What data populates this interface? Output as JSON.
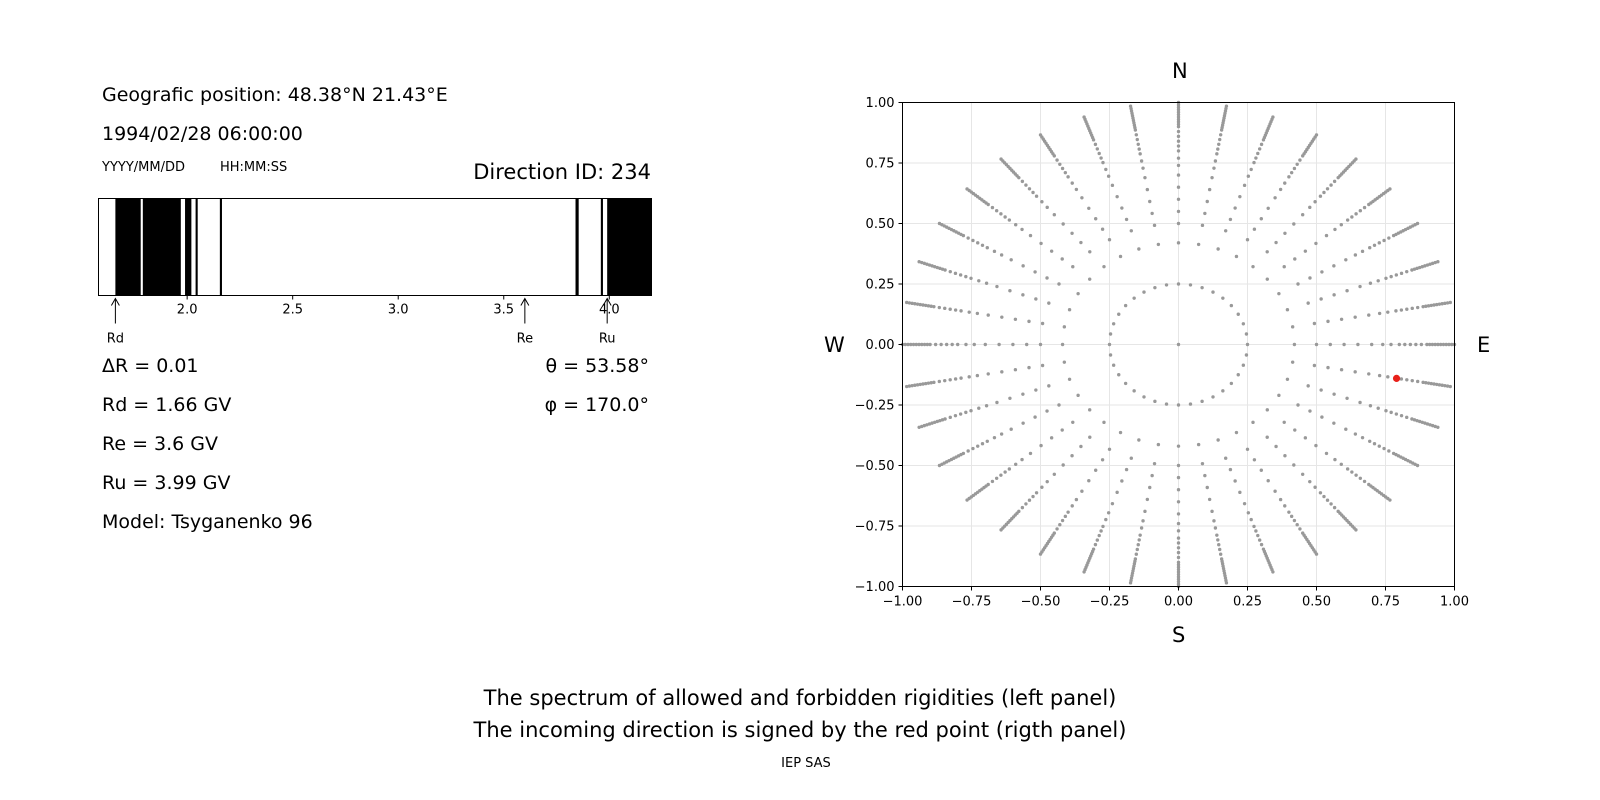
{
  "left_panel": {
    "position_text": "Geografic position: 48.38°N 21.43°E",
    "datetime_text": "1994/02/28 06:00:00",
    "date_format_label": "YYYY/MM/DD",
    "time_format_label": "HH:MM:SS",
    "direction_text": "Direction ID: 234",
    "params": {
      "delta_r": "ΔR = 0.01",
      "rd": "Rd = 1.66 GV",
      "re": "Re = 3.6 GV",
      "ru": "Ru = 3.99 GV",
      "model": "Model: Tsyganenko 96",
      "theta": "θ = 53.58°",
      "phi": "φ = 170.0°"
    }
  },
  "chart_data": [
    {
      "type": "spectrum",
      "xlim": [
        1.58,
        4.2
      ],
      "ticks": [
        2.0,
        2.5,
        3.0,
        3.5,
        4.0
      ],
      "tick_labels": [
        "2.0",
        "2.5",
        "3.0",
        "3.5",
        "4.0"
      ],
      "forbidden_bands": [
        [
          1.66,
          1.78
        ],
        [
          1.79,
          1.97
        ],
        [
          1.99,
          2.02
        ],
        [
          2.04,
          2.05
        ],
        [
          2.155,
          2.165
        ],
        [
          3.84,
          3.855
        ],
        [
          3.96,
          3.97
        ],
        [
          3.99,
          4.2
        ]
      ],
      "markers": [
        {
          "label": "Rd",
          "value": 1.66
        },
        {
          "label": "Re",
          "value": 3.6
        },
        {
          "label": "Ru",
          "value": 3.99
        }
      ],
      "colors": {
        "forbidden": "#000000",
        "allowed": "#ffffff"
      }
    },
    {
      "type": "scatter",
      "xlim": [
        -1.0,
        1.0
      ],
      "ylim": [
        -1.0,
        1.0
      ],
      "grid": true,
      "x_tick_labels": [
        "−1.00",
        "−0.75",
        "−0.50",
        "−0.25",
        "0.00",
        "0.25",
        "0.50",
        "0.75",
        "1.00"
      ],
      "y_tick_labels": [
        "−1.00",
        "−0.75",
        "−0.50",
        "−0.25",
        "0.00",
        "0.25",
        "0.50",
        "0.75",
        "1.00"
      ],
      "compass": {
        "north": "N",
        "south": "S",
        "west": "W",
        "east": "E"
      },
      "grid_pattern": {
        "azimuth_step_deg": 10,
        "radii": [
          0.25,
          0.42,
          0.5,
          0.55,
          0.6,
          0.65,
          0.7,
          0.74,
          0.77,
          0.8,
          0.82,
          0.84,
          0.86,
          0.88,
          0.9,
          0.91,
          0.92,
          0.93,
          0.94,
          0.95,
          0.96,
          0.97,
          0.98,
          0.99,
          1.0
        ]
      },
      "highlight_point": {
        "x": 0.79,
        "y": -0.14
      },
      "colors": {
        "grid_points": "#999999",
        "highlight": "#e8201a"
      }
    }
  ],
  "caption": {
    "line1": "The spectrum of allowed and forbidden rigidities (left panel)",
    "line2": "The incoming direction is signed by the red point (rigth panel)"
  },
  "footer": "IEP SAS"
}
